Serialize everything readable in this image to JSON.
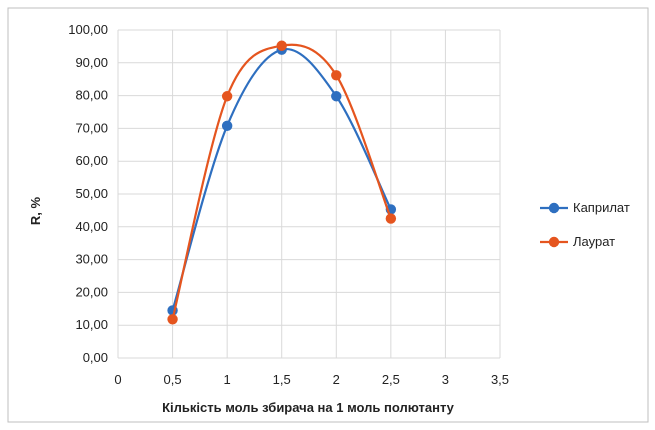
{
  "chart_data": {
    "type": "scatter",
    "xlabel": "Кількість моль збирача на 1 моль полютанту",
    "ylabel": "R, %",
    "xlim": [
      0,
      3.5
    ],
    "ylim": [
      0,
      100
    ],
    "x_ticks": [
      "0",
      "0,5",
      "1",
      "1,5",
      "2",
      "2,5",
      "3",
      "3,5"
    ],
    "x_tick_values": [
      0,
      0.5,
      1,
      1.5,
      2,
      2.5,
      3,
      3.5
    ],
    "y_ticks": [
      "0,00",
      "10,00",
      "20,00",
      "30,00",
      "40,00",
      "50,00",
      "60,00",
      "70,00",
      "80,00",
      "90,00",
      "100,00"
    ],
    "y_tick_values": [
      0,
      10,
      20,
      30,
      40,
      50,
      60,
      70,
      80,
      90,
      100
    ],
    "grid": true,
    "smoothed_lines": true,
    "legend_position": "right",
    "series": [
      {
        "name": "Каприлат",
        "color": "#2E6FC0",
        "x": [
          0.5,
          1,
          1.5,
          2,
          2.5
        ],
        "y": [
          14.5,
          70.8,
          94.0,
          79.8,
          45.3
        ]
      },
      {
        "name": "Лаурат",
        "color": "#E5551F",
        "x": [
          0.5,
          1,
          1.5,
          2,
          2.5
        ],
        "y": [
          11.8,
          79.8,
          95.2,
          86.2,
          42.5
        ]
      }
    ],
    "colors": {
      "grid": "#d9d9d9",
      "border": "#bfbfbf",
      "text": "#222222"
    }
  }
}
